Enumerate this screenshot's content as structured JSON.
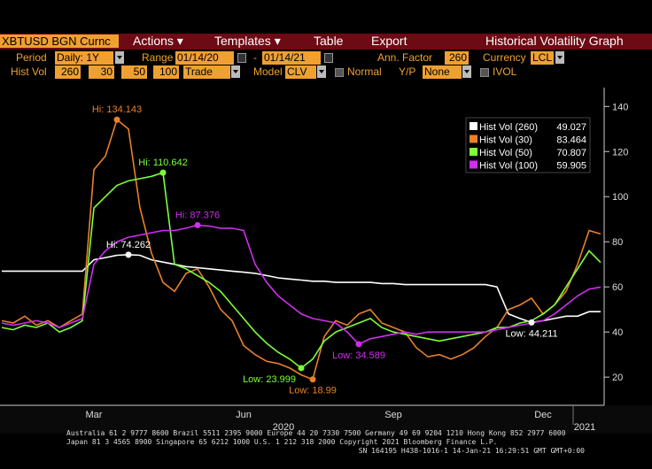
{
  "toolbar": {
    "security": "XBTUSD BGN Curnc",
    "menus": [
      "Actions ▾",
      "Templates ▾",
      "Table",
      "Export"
    ],
    "title": "Historical Volatility Graph"
  },
  "settings": {
    "period_label": "Period",
    "period": "Daily: 1Y",
    "range_label": "Range",
    "range_from": "01/14/20",
    "range_sep": "-",
    "range_to": "01/14/21",
    "ann_factor_label": "Ann. Factor",
    "ann_factor": "260",
    "currency_label": "Currency",
    "currency": "LCL",
    "hist_vol_label": "Hist Vol",
    "hist_vol_windows": [
      "260",
      "30",
      "50",
      "100"
    ],
    "price": "Trade",
    "model_label": "Model",
    "model": "CLV",
    "normal_label": "Normal",
    "yp_label": "Y/P",
    "yp": "None",
    "ivol_label": "IVOL"
  },
  "chart_data": {
    "type": "line",
    "categories": [
      null,
      null,
      null,
      null,
      null,
      null,
      null,
      null,
      "Mar",
      null,
      null,
      null,
      null,
      null,
      null,
      null,
      null,
      null,
      null,
      null,
      null,
      "Jun",
      null,
      null,
      null,
      null,
      null,
      null,
      null,
      null,
      null,
      null,
      null,
      null,
      "Sep",
      null,
      null,
      null,
      null,
      null,
      null,
      null,
      null,
      null,
      null,
      null,
      null,
      "Dec",
      null,
      null,
      null,
      null,
      null
    ],
    "year_labels": [
      "2020",
      "2021"
    ],
    "ylim": [
      7.5,
      146
    ],
    "yticks": [
      20,
      40,
      60,
      80,
      100,
      120,
      140
    ],
    "legend": "top-right",
    "series": [
      {
        "name": "Hist Vol (260)",
        "color": "#ffffff",
        "values": [
          67,
          67,
          67,
          67,
          67,
          67,
          67,
          67,
          72,
          73,
          74,
          74.262,
          74,
          72,
          71,
          70,
          69,
          68.5,
          68,
          67.5,
          67,
          66.5,
          66,
          65,
          64,
          63.5,
          63,
          62.5,
          62.5,
          62,
          62,
          62,
          62,
          61.5,
          61.5,
          61,
          61,
          61,
          61,
          61,
          61,
          61,
          61,
          60,
          48,
          46,
          44.211,
          45,
          46,
          47,
          47,
          49,
          49.027
        ],
        "value_labels": [
          null,
          null,
          null,
          null,
          null,
          null,
          null,
          null,
          null,
          null,
          null,
          "Hi: 74.262",
          null,
          null,
          null,
          null,
          null,
          null,
          null,
          null,
          null,
          null,
          null,
          null,
          null,
          null,
          null,
          null,
          null,
          null,
          null,
          null,
          null,
          null,
          null,
          null,
          null,
          null,
          null,
          null,
          null,
          null,
          null,
          null,
          null,
          null,
          "Low: 44.211",
          null,
          null,
          null,
          null,
          null,
          null
        ]
      },
      {
        "name": "Hist Vol (30)",
        "color": "#e8812a",
        "values": [
          45,
          44,
          47,
          43,
          45,
          42,
          45,
          48,
          112,
          118,
          134.143,
          130,
          95,
          75,
          62,
          58,
          66,
          68,
          60,
          50,
          45,
          34,
          30,
          27,
          26,
          24,
          21,
          18.99,
          38,
          45,
          43,
          48,
          50,
          44,
          42,
          40,
          33,
          29,
          30,
          28,
          30,
          33,
          38,
          42,
          50,
          52,
          55,
          48,
          52,
          58,
          70,
          85,
          83.464
        ],
        "value_labels": [
          null,
          null,
          null,
          null,
          null,
          null,
          null,
          null,
          null,
          null,
          "Hi: 134.143",
          null,
          null,
          null,
          null,
          null,
          null,
          null,
          null,
          null,
          null,
          null,
          null,
          null,
          null,
          null,
          null,
          "Low: 18.99",
          null,
          null,
          null,
          null,
          null,
          null,
          null,
          null,
          null,
          null,
          null,
          null,
          null,
          null,
          null,
          null,
          null,
          null,
          null,
          null,
          null,
          null,
          null,
          null,
          null
        ]
      },
      {
        "name": "Hist Vol (50)",
        "color": "#7dff3a",
        "values": [
          42,
          41,
          43,
          42,
          44,
          40,
          42,
          45,
          95,
          100,
          105,
          107,
          108,
          109,
          110.642,
          70,
          68,
          65,
          62,
          58,
          52,
          46,
          40,
          35,
          31,
          28,
          23.999,
          28,
          36,
          40,
          42,
          44,
          46,
          42,
          40,
          39,
          38,
          37,
          36,
          37,
          38,
          39,
          40,
          42,
          42,
          44,
          45,
          48,
          52,
          60,
          68,
          76,
          70.807
        ],
        "value_labels": [
          null,
          null,
          null,
          null,
          null,
          null,
          null,
          null,
          null,
          null,
          null,
          null,
          null,
          null,
          "Hi: 110.642",
          null,
          null,
          null,
          null,
          null,
          null,
          null,
          null,
          null,
          null,
          null,
          "Low: 23.999",
          null,
          null,
          null,
          null,
          null,
          null,
          null,
          null,
          null,
          null,
          null,
          null,
          null,
          null,
          null,
          null,
          null,
          null,
          null,
          null,
          null,
          null,
          null,
          null,
          null,
          null
        ]
      },
      {
        "name": "Hist Vol (100)",
        "color": "#d02ef0",
        "values": [
          44,
          43,
          44,
          45,
          44,
          42,
          44,
          46,
          70,
          76,
          80,
          82,
          83,
          84,
          85,
          85,
          86,
          87.376,
          87,
          86,
          86,
          85,
          70,
          62,
          56,
          52,
          48,
          46,
          45,
          44,
          40,
          34.589,
          37,
          38,
          39,
          40,
          39,
          40,
          40,
          40,
          40,
          40,
          40,
          41,
          42,
          43,
          44,
          45,
          48,
          52,
          56,
          59,
          59.905
        ],
        "value_labels": [
          null,
          null,
          null,
          null,
          null,
          null,
          null,
          null,
          null,
          null,
          null,
          null,
          null,
          null,
          null,
          null,
          null,
          "Hi: 87.376",
          null,
          null,
          null,
          null,
          null,
          null,
          null,
          null,
          null,
          null,
          null,
          null,
          null,
          "Low: 34.589",
          null,
          null,
          null,
          null,
          null,
          null,
          null,
          null,
          null,
          null,
          null,
          null,
          null,
          null,
          null,
          null,
          null,
          null,
          null,
          null,
          null
        ]
      }
    ]
  },
  "footer": [
    "Australia 61 2 9777 8600 Brazil 5511 2395 9000 Europe 44 20 7330 7500 Germany 49 69 9204 1210 Hong Kong 852 2977 6000",
    "Japan 81 3 4565 8900       Singapore 65 6212 1000       U.S. 1 212 318 2000            Copyright 2021 Bloomberg Finance L.P.",
    "SN 164195 H438-1016-1 14-Jan-21 16:29:51 GMT  GMT+0:00"
  ]
}
